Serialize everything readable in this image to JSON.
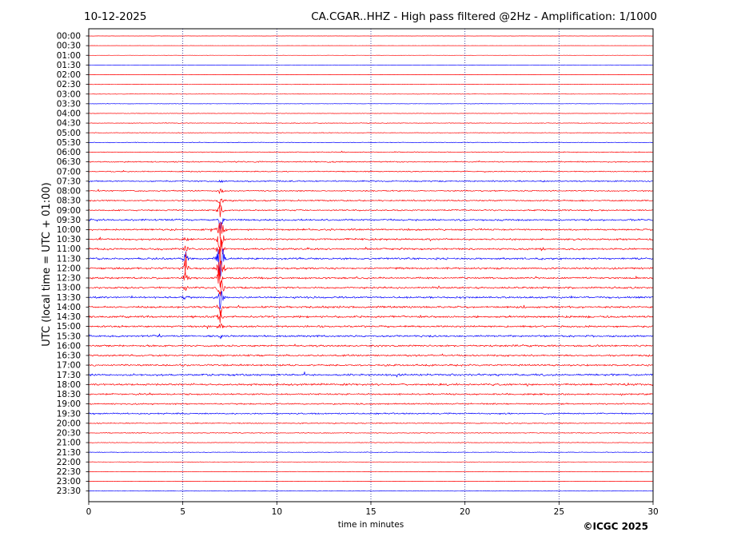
{
  "header": {
    "date": "10-12-2025",
    "title": "CA.CGAR..HHZ - High pass filtered @2Hz - Amplification: 1/1000"
  },
  "footer": {
    "copyright": "©ICGC 2025"
  },
  "colors": {
    "trace_a": "#ff0000",
    "trace_b": "#0000ff",
    "gridline": "#1a1a8a",
    "frame": "#000000"
  },
  "chart_data": {
    "type": "line",
    "chart_kind": "helicorder",
    "xlabel": "time in minutes",
    "ylabel": "UTC (local time = UTC + 01:00)",
    "xlim": [
      0,
      30
    ],
    "x_ticks": [
      0,
      5,
      10,
      15,
      20,
      25,
      30
    ],
    "vertical_grid_at": [
      5,
      10,
      15,
      20,
      25
    ],
    "grid_style": "dotted",
    "row_labels": [
      "00:00",
      "00:30",
      "01:00",
      "01:30",
      "02:00",
      "02:30",
      "03:00",
      "03:30",
      "04:00",
      "04:30",
      "05:00",
      "05:30",
      "06:00",
      "06:30",
      "07:00",
      "07:30",
      "08:00",
      "08:30",
      "09:00",
      "09:30",
      "10:00",
      "10:30",
      "11:00",
      "11:30",
      "12:00",
      "12:30",
      "13:00",
      "13:30",
      "14:00",
      "14:30",
      "15:00",
      "15:30",
      "16:00",
      "16:30",
      "17:00",
      "17:30",
      "18:00",
      "18:30",
      "19:00",
      "19:30",
      "20:00",
      "20:30",
      "21:00",
      "21:30",
      "22:00",
      "22:30",
      "23:00",
      "23:30"
    ],
    "row_color_pattern": [
      "red",
      "red",
      "red",
      "blue"
    ],
    "noise_level": [
      0.1,
      0.1,
      0.1,
      0.1,
      0.1,
      0.2,
      0.2,
      0.2,
      0.2,
      0.3,
      0.3,
      0.3,
      0.4,
      0.6,
      0.5,
      0.7,
      0.6,
      0.7,
      0.7,
      0.9,
      0.9,
      0.9,
      0.9,
      0.9,
      0.9,
      0.9,
      0.9,
      0.9,
      1.0,
      1.0,
      0.9,
      0.9,
      0.9,
      0.9,
      0.9,
      1.0,
      1.0,
      0.8,
      0.7,
      0.7,
      0.5,
      0.4,
      0.3,
      0.3,
      0.2,
      0.2,
      0.2,
      0.2
    ],
    "events": [
      {
        "minute": 7.0,
        "row": "11:30",
        "peak_rows": 8,
        "duration_min": 0.4
      },
      {
        "minute": 5.15,
        "row": "12:00",
        "peak_rows": 3.5,
        "duration_min": 0.35
      },
      {
        "minute": 24.1,
        "row": "11:00",
        "peak_rows": 0.8,
        "duration_min": 0.3
      },
      {
        "minute": 29.1,
        "row": "12:30",
        "peak_rows": 0.3,
        "duration_min": 0.3
      }
    ]
  }
}
